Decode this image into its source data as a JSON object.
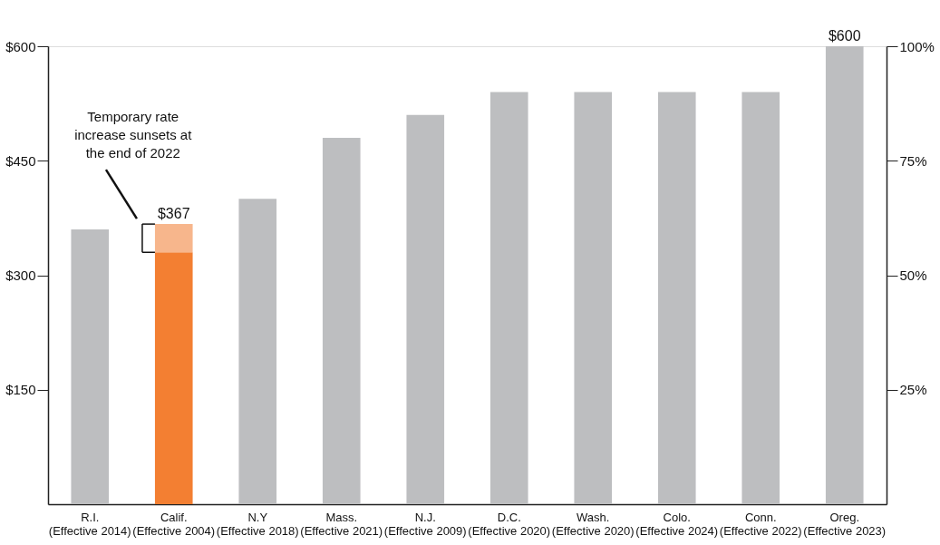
{
  "chart_data": {
    "type": "bar",
    "stacked": true,
    "categories": [
      "R.I.\n(Effective 2014)",
      "Calif.\n(Effective 2004)",
      "N.Y\n(Effective 2018)",
      "Mass.\n(Effective 2021)",
      "N.J.\n(Effective 2009)",
      "D.C.\n(Effective 2020)",
      "Wash.\n(Effective 2020)",
      "Colo.\n(Effective 2024)",
      "Conn.\n(Effective 2022)",
      "Oreg.\n(Effective 2023)"
    ],
    "series": [
      {
        "values": [
          360,
          330,
          400,
          480,
          510,
          540,
          540,
          540,
          540,
          600
        ],
        "colors": [
          "#bdbec0",
          "#f37f32",
          "#bdbec0",
          "#bdbec0",
          "#bdbec0",
          "#bdbec0",
          "#bdbec0",
          "#bdbec0",
          "#bdbec0",
          "#bdbec0"
        ]
      },
      {
        "values": [
          null,
          37,
          null,
          null,
          null,
          null,
          null,
          null,
          null,
          null
        ],
        "color": "#f7b68c"
      }
    ],
    "totals": [
      null,
      "$367",
      null,
      null,
      null,
      null,
      null,
      null,
      null,
      "$600"
    ],
    "ylim": [
      0,
      600
    ],
    "yticks": [
      {
        "value": 150,
        "label": "$150"
      },
      {
        "value": 300,
        "label": "$300"
      },
      {
        "value": 450,
        "label": "$450"
      },
      {
        "value": 600,
        "label": "$600"
      }
    ],
    "y2lim": [
      0,
      100
    ],
    "y2ticks": [
      {
        "value": 25,
        "label": "25%"
      },
      {
        "value": 50,
        "label": "50%"
      },
      {
        "value": 75,
        "label": "75%"
      },
      {
        "value": 100,
        "label": "100%"
      }
    ],
    "annotations": [
      "Temporary rate\nincrease sunsets at\nthe end of 2022"
    ],
    "grid": false
  }
}
